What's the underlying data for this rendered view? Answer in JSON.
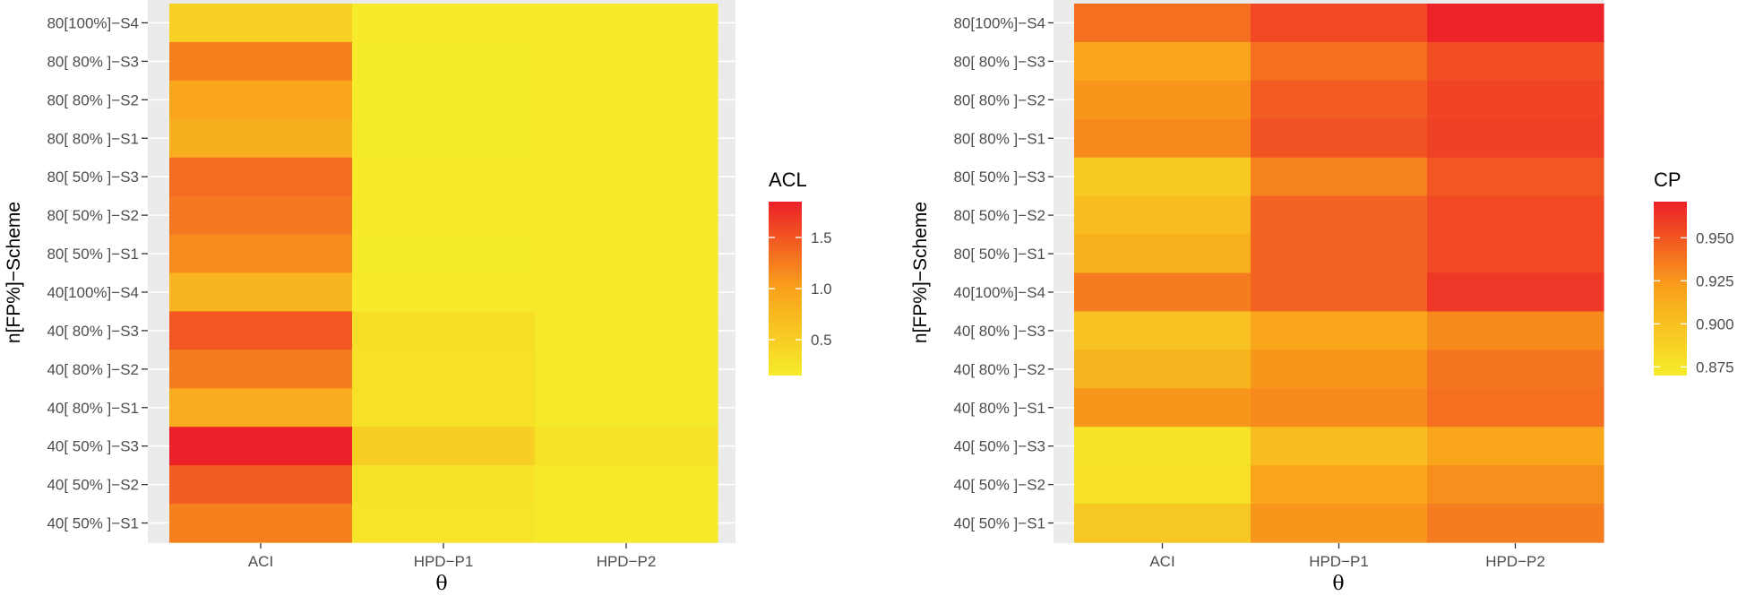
{
  "chart_data": [
    {
      "type": "heatmap",
      "title": "",
      "xlabel": "θ",
      "ylabel": "n[FP%]−Scheme",
      "x_categories": [
        "ACI",
        "HPD−P1",
        "HPD−P2"
      ],
      "y_categories": [
        "80[100%]−S4",
        "80[ 80% ]−S3",
        "80[ 80% ]−S2",
        "80[ 80% ]−S1",
        "80[ 50% ]−S3",
        "80[ 50% ]−S2",
        "80[ 50% ]−S1",
        "40[100%]−S4",
        "40[ 80% ]−S3",
        "40[ 80% ]−S2",
        "40[ 80% ]−S1",
        "40[ 50% ]−S3",
        "40[ 50% ]−S2",
        "40[ 50% ]−S1"
      ],
      "values": [
        [
          0.45,
          0.17,
          0.17
        ],
        [
          1.22,
          0.16,
          0.18
        ],
        [
          0.95,
          0.16,
          0.17
        ],
        [
          0.85,
          0.16,
          0.17
        ],
        [
          1.35,
          0.17,
          0.17
        ],
        [
          1.28,
          0.17,
          0.17
        ],
        [
          1.15,
          0.16,
          0.18
        ],
        [
          0.78,
          0.17,
          0.17
        ],
        [
          1.5,
          0.3,
          0.19
        ],
        [
          1.25,
          0.28,
          0.19
        ],
        [
          0.88,
          0.28,
          0.18
        ],
        [
          1.85,
          0.48,
          0.25
        ],
        [
          1.45,
          0.25,
          0.18
        ],
        [
          1.22,
          0.24,
          0.17
        ]
      ],
      "legend": {
        "title": "ACL",
        "ticks": [
          "0.5",
          "1.0",
          "1.5"
        ],
        "tick_values": [
          0.5,
          1.0,
          1.5
        ],
        "min": 0.15,
        "max": 1.85,
        "low_color": "#f6ec2a",
        "high_color": "#ec2028"
      }
    },
    {
      "type": "heatmap",
      "title": "",
      "xlabel": "θ",
      "ylabel": "n[FP%]−Scheme",
      "x_categories": [
        "ACI",
        "HPD−P1",
        "HPD−P2"
      ],
      "y_categories": [
        "80[100%]−S4",
        "80[ 80% ]−S3",
        "80[ 80% ]−S2",
        "80[ 80% ]−S1",
        "80[ 50% ]−S3",
        "80[ 50% ]−S2",
        "80[ 50% ]−S1",
        "40[100%]−S4",
        "40[ 80% ]−S3",
        "40[ 80% ]−S2",
        "40[ 80% ]−S1",
        "40[ 50% ]−S3",
        "40[ 50% ]−S2",
        "40[ 50% ]−S1"
      ],
      "values": [
        [
          0.94,
          0.955,
          0.97
        ],
        [
          0.918,
          0.94,
          0.953
        ],
        [
          0.925,
          0.948,
          0.957
        ],
        [
          0.93,
          0.952,
          0.958
        ],
        [
          0.893,
          0.933,
          0.95
        ],
        [
          0.903,
          0.945,
          0.955
        ],
        [
          0.91,
          0.945,
          0.955
        ],
        [
          0.935,
          0.945,
          0.962
        ],
        [
          0.898,
          0.918,
          0.93
        ],
        [
          0.908,
          0.925,
          0.938
        ],
        [
          0.925,
          0.93,
          0.94
        ],
        [
          0.876,
          0.903,
          0.918
        ],
        [
          0.878,
          0.918,
          0.928
        ],
        [
          0.895,
          0.925,
          0.935
        ]
      ],
      "legend": {
        "title": "CP",
        "ticks": [
          "0.875",
          "0.900",
          "0.925",
          "0.950"
        ],
        "tick_values": [
          0.875,
          0.9,
          0.925,
          0.95
        ],
        "min": 0.87,
        "max": 0.971,
        "low_color": "#f6ec2a",
        "high_color": "#ec2028"
      }
    }
  ]
}
